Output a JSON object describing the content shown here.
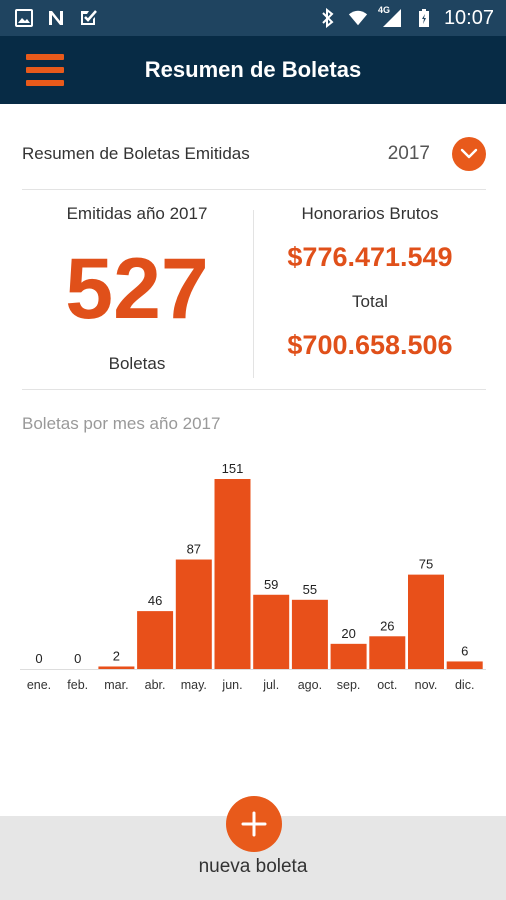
{
  "status_bar": {
    "time": "10:07",
    "network": "4G",
    "icons_left": [
      "image-icon",
      "n-notification-icon",
      "checkbox-notification-icon"
    ],
    "icons_right": [
      "bluetooth-icon",
      "wifi-icon",
      "signal-icon",
      "battery-icon"
    ]
  },
  "app_bar": {
    "title": "Resumen de Boletas",
    "menu_icon": "hamburger-menu-icon"
  },
  "summary": {
    "label": "Resumen de Boletas Emitidas",
    "year": "2017",
    "dropdown_icon": "chevron-down-icon"
  },
  "stats": {
    "emitidas_label": "Emitidas año 2017",
    "count": "527",
    "count_unit": "Boletas",
    "honorarios_label": "Honorarios Brutos",
    "honorarios_value": "$776.471.549",
    "total_label": "Total",
    "total_value": "$700.658.506"
  },
  "chart_title": "Boletas por mes año 2017",
  "chart_data": {
    "type": "bar",
    "categories": [
      "ene.",
      "feb.",
      "mar.",
      "abr.",
      "may.",
      "jun.",
      "jul.",
      "ago.",
      "sep.",
      "oct.",
      "nov.",
      "dic."
    ],
    "values": [
      0,
      0,
      2,
      46,
      87,
      151,
      59,
      55,
      20,
      26,
      75,
      6
    ],
    "title": "Boletas por mes año 2017",
    "xlabel": "",
    "ylabel": "",
    "ylim": [
      0,
      151
    ],
    "color": "#e8501a",
    "grid": false,
    "data_labels": true
  },
  "fab": {
    "icon": "plus-icon",
    "label": "nueva boleta"
  },
  "colors": {
    "accent": "#e85a1b",
    "app_bar": "#072b45",
    "status_bar": "#1f4460"
  }
}
